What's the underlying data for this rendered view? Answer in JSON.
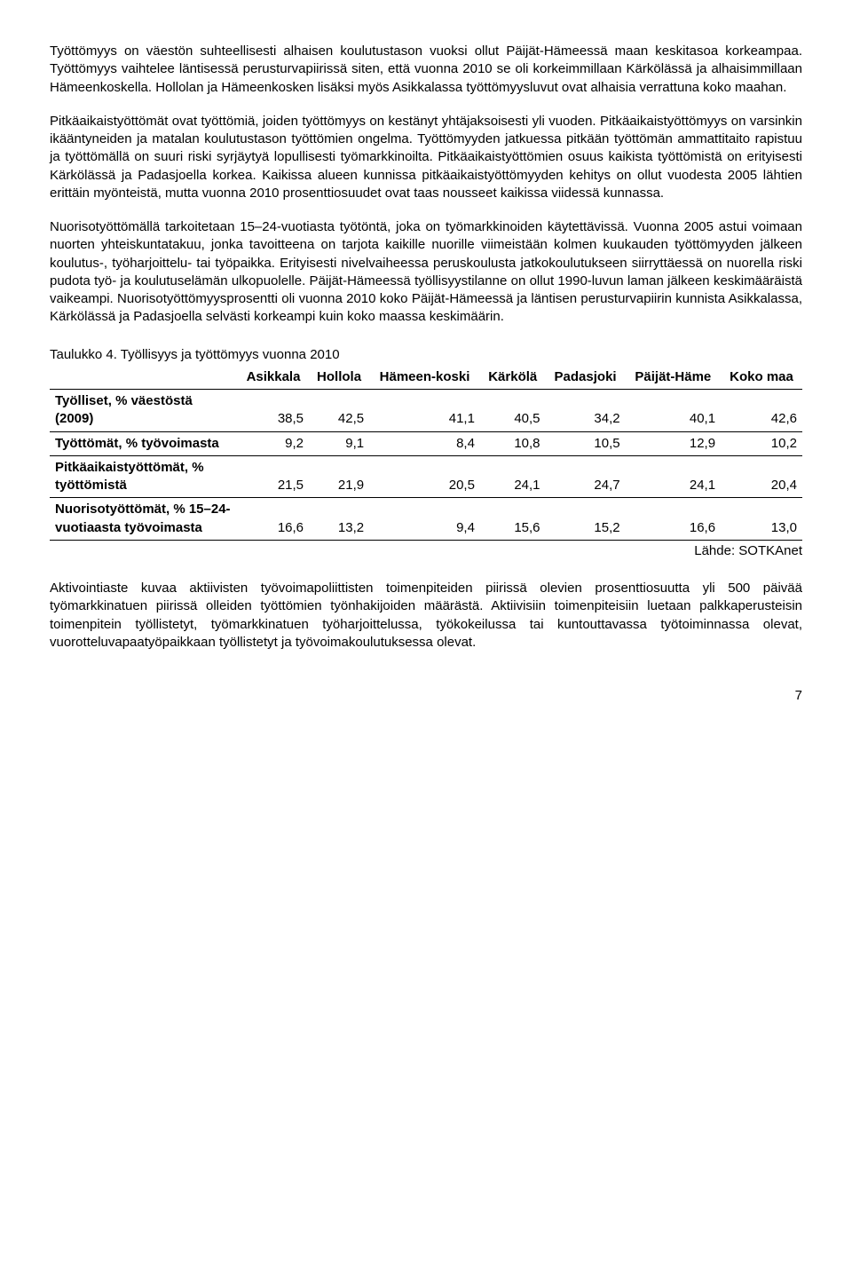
{
  "paragraphs": {
    "p1": "Työttömyys on väestön suhteellisesti alhaisen koulutustason vuoksi ollut Päijät-Hämeessä maan keskitasoa korkeampaa. Työttömyys vaihtelee läntisessä perusturvapiirissä siten, että vuonna 2010 se oli korkeimmillaan Kärkölässä ja alhaisimmillaan Hämeenkoskella. Hollolan ja Hämeenkosken lisäksi myös Asikkalassa työttömyysluvut ovat alhaisia verrattuna koko maahan.",
    "p2": "Pitkäaikaistyöttömät ovat työttömiä, joiden työttömyys on kestänyt yhtäjaksoisesti yli vuoden. Pitkäaikaistyöttömyys on varsinkin ikääntyneiden ja matalan koulutustason työttömien ongelma. Työttömyyden jatkuessa pitkään työttömän ammattitaito rapistuu ja työttömällä on suuri riski syrjäytyä lopullisesti työmarkkinoilta. Pitkäaikaistyöttömien osuus kaikista työttömistä on erityisesti Kärkölässä ja Padasjoella korkea. Kaikissa alueen kunnissa pitkäaikaistyöttömyyden kehitys on ollut vuodesta 2005 lähtien erittäin myönteistä, mutta vuonna 2010 prosenttiosuudet ovat taas nousseet kaikissa viidessä kunnassa.",
    "p3": "Nuorisotyöttömällä tarkoitetaan 15–24-vuotiasta työtöntä, joka on työmarkkinoiden käytettävissä. Vuonna 2005 astui voimaan nuorten yhteiskuntatakuu, jonka tavoitteena on tarjota kaikille nuorille viimeistään kolmen kuukauden työttömyyden jälkeen koulutus-, työharjoittelu- tai työpaikka. Erityisesti nivelvaiheessa peruskoulusta jatkokoulutukseen siirryttäessä on nuorella riski pudota työ- ja koulutuselämän ulkopuolelle. Päijät-Hämeessä työllisyystilanne on ollut 1990-luvun laman jälkeen keskimääräistä vaikeampi. Nuorisotyöttömyysprosentti oli vuonna 2010 koko Päijät-Hämeessä ja läntisen perusturvapiirin kunnista Asikkalassa, Kärkölässä ja Padasjoella selvästi korkeampi kuin koko maassa keskimäärin.",
    "p4": "Aktivointiaste kuvaa aktiivisten työvoimapoliittisten toimenpiteiden piirissä olevien prosenttiosuutta yli 500 päivää työmarkkinatuen piirissä olleiden työttömien työnhakijoiden määrästä. Aktiivisiin toimenpiteisiin luetaan palkkaperusteisin toimenpitein työllistetyt, työmarkkinatuen työharjoittelussa, työkokeilussa tai kuntouttavassa työtoiminnassa olevat, vuorotteluvapaatyöpaikkaan työllistetyt ja työvoimakoulutuksessa olevat."
  },
  "table": {
    "title": "Taulukko 4. Työllisyys ja työttömyys vuonna 2010",
    "columns": [
      "",
      "Asikkala",
      "Hollola",
      "Hämeen-koski",
      "Kärkölä",
      "Padasjoki",
      "Päijät-Häme",
      "Koko maa"
    ],
    "rows": [
      {
        "label": "Työlliset, % väestöstä (2009)",
        "values": [
          "38,5",
          "42,5",
          "41,1",
          "40,5",
          "34,2",
          "40,1",
          "42,6"
        ]
      },
      {
        "label": "Työttömät, % työvoimasta",
        "values": [
          "9,2",
          "9,1",
          "8,4",
          "10,8",
          "10,5",
          "12,9",
          "10,2"
        ]
      },
      {
        "label": "Pitkäaikaistyöttömät, % työttömistä",
        "values": [
          "21,5",
          "21,9",
          "20,5",
          "24,1",
          "24,7",
          "24,1",
          "20,4"
        ]
      },
      {
        "label": "Nuorisotyöttömät, % 15–24-vuotiaasta työvoimasta",
        "values": [
          "16,6",
          "13,2",
          "9,4",
          "15,6",
          "15,2",
          "16,6",
          "13,0"
        ]
      }
    ],
    "source": "Lähde: SOTKAnet"
  },
  "pagenum": "7"
}
